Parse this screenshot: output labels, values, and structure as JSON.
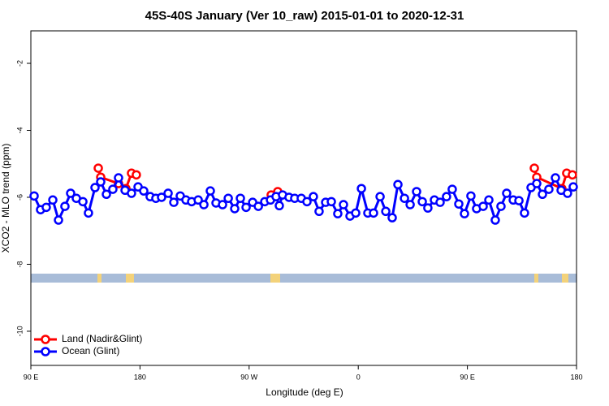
{
  "chart_data": {
    "type": "line",
    "title": "45S-40S January (Ver 10_raw)   2015-01-01 to 2020-12-31",
    "x_label": "Longitude (deg E)",
    "y_label": "XCO2 - MLO trend (ppm)",
    "xlim": [
      90,
      540
    ],
    "xticks": [
      {
        "value": 90,
        "label": "90 E"
      },
      {
        "value": 180,
        "label": "180"
      },
      {
        "value": 270,
        "label": "90 W"
      },
      {
        "value": 360,
        "label": "0"
      },
      {
        "value": 450,
        "label": "90 E"
      },
      {
        "value": 540,
        "label": "180"
      }
    ],
    "ylim": [
      -11.02,
      -1.03
    ],
    "yticks": [
      -2,
      -4,
      -6,
      -8,
      -10
    ],
    "legend": "bottom-left",
    "series": [
      {
        "name": "Land (Nadir&Glint)",
        "color": "#ff0000",
        "x": [
          145.6,
          147.6,
          162.3,
          168.4,
          173.0,
          177.0,
          null,
          288.2,
          293.6,
          null,
          505.2,
          507.2,
          527.9,
          531.9,
          536.6
        ],
        "values": [
          -5.13,
          -5.4,
          -5.59,
          -5.74,
          -5.28,
          -5.33,
          null,
          -5.93,
          -5.83,
          null,
          -5.13,
          -5.4,
          -5.74,
          -5.28,
          -5.33
        ]
      },
      {
        "name": "Ocean (Glint)",
        "color": "#0000ff",
        "x": [
          92.7,
          98.0,
          102.7,
          108.1,
          112.8,
          118.1,
          122.8,
          127.5,
          132.9,
          137.5,
          142.9,
          147.6,
          152.3,
          157.6,
          162.3,
          167.7,
          173.0,
          178.4,
          183.1,
          188.4,
          193.1,
          197.8,
          203.2,
          207.9,
          213.2,
          217.9,
          222.6,
          228.0,
          232.7,
          238.0,
          242.7,
          248.1,
          252.8,
          258.1,
          262.8,
          267.5,
          272.9,
          277.6,
          282.9,
          287.6,
          292.2,
          294.9,
          297.6,
          302.9,
          307.6,
          313.0,
          317.7,
          323.0,
          327.7,
          333.1,
          337.8,
          343.1,
          347.8,
          353.2,
          357.9,
          362.6,
          367.9,
          372.6,
          378.0,
          382.7,
          388.0,
          392.7,
          398.1,
          402.8,
          408.1,
          412.8,
          417.4,
          422.8,
          427.5,
          432.8,
          437.5,
          442.9,
          447.6,
          452.9,
          457.6,
          463.0,
          467.7,
          473.0,
          477.7,
          482.4,
          487.8,
          492.5,
          497.1,
          502.5,
          507.2,
          511.9,
          517.2,
          522.6,
          527.3,
          532.6,
          537.3
        ],
        "values": [
          -5.96,
          -6.37,
          -6.3,
          -6.08,
          -6.68,
          -6.27,
          -5.88,
          -6.03,
          -6.13,
          -6.47,
          -5.71,
          -5.54,
          -5.91,
          -5.76,
          -5.42,
          -5.79,
          -5.88,
          -5.69,
          -5.81,
          -5.98,
          -6.03,
          -6.0,
          -5.88,
          -6.15,
          -5.96,
          -6.08,
          -6.13,
          -6.08,
          -6.22,
          -5.81,
          -6.17,
          -6.22,
          -6.03,
          -6.34,
          -6.03,
          -6.3,
          -6.15,
          -6.27,
          -6.13,
          -6.08,
          -5.98,
          -6.25,
          -5.93,
          -6.0,
          -6.03,
          -6.03,
          -6.13,
          -5.98,
          -6.42,
          -6.15,
          -6.13,
          -6.49,
          -6.22,
          -6.56,
          -6.47,
          -5.74,
          -6.47,
          -6.47,
          -5.98,
          -6.42,
          -6.61,
          -5.62,
          -6.03,
          -6.22,
          -5.83,
          -6.13,
          -6.32,
          -6.08,
          -6.15,
          -5.98,
          -5.76,
          -6.2,
          -6.49,
          -5.96,
          -6.34,
          -6.27,
          -6.08,
          -6.68,
          -6.27,
          -5.88,
          -6.08,
          -6.1,
          -6.47,
          -5.71,
          -5.59,
          -5.91,
          -5.76,
          -5.42,
          -5.79,
          -5.88,
          -5.69
        ]
      }
    ]
  }
}
